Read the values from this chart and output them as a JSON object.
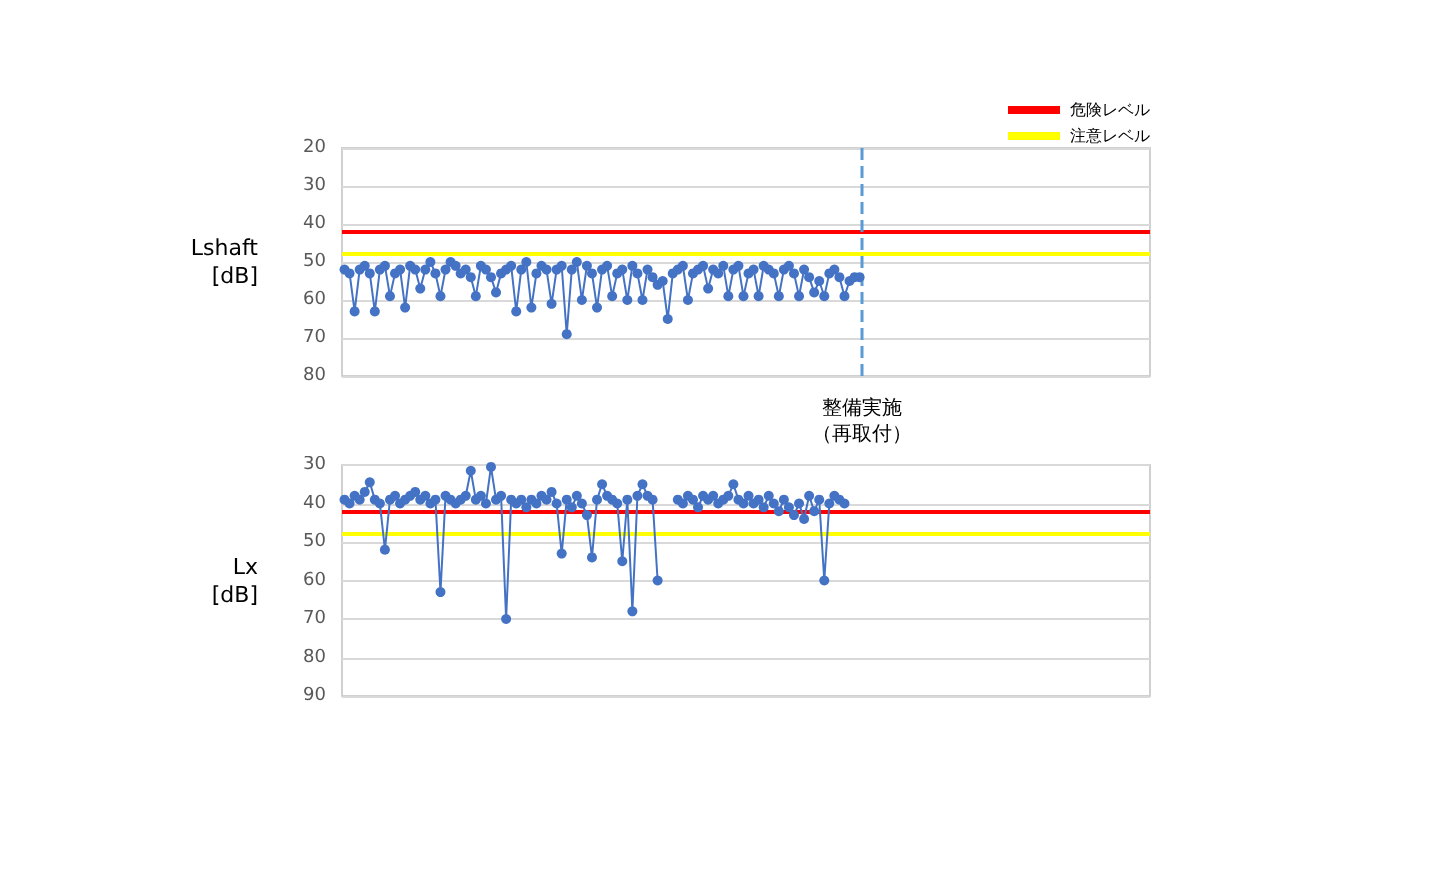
{
  "chart_data": [
    {
      "type": "line",
      "ylabel": "Lshaft\n[dB]",
      "categories": [
        null,
        null,
        null,
        null,
        null,
        null,
        null,
        null,
        null,
        null,
        null,
        null,
        null,
        null,
        null,
        null,
        null,
        null,
        null,
        null,
        null,
        null,
        null,
        null,
        null,
        null,
        null,
        null,
        null,
        null,
        null,
        null,
        null,
        null,
        null,
        null,
        null,
        null,
        null,
        null,
        null,
        null,
        null,
        null,
        null,
        null,
        null,
        null,
        null,
        null,
        null,
        null,
        null,
        null,
        null,
        null,
        null,
        null,
        null,
        null,
        null,
        null,
        null,
        null,
        null,
        null,
        null,
        null,
        null,
        null,
        null,
        null,
        null,
        null,
        null,
        null,
        null,
        null,
        null,
        null,
        null,
        null,
        null,
        null,
        null,
        null,
        null,
        null,
        null,
        null,
        null,
        null,
        null,
        null,
        null,
        null,
        null,
        null,
        null,
        null,
        null,
        null,
        null,
        null,
        null,
        null,
        null,
        null,
        null,
        null,
        null,
        null,
        null,
        null,
        null,
        null,
        null,
        null,
        null,
        null,
        null,
        null,
        null,
        null,
        null,
        null,
        null,
        null,
        null,
        null,
        null,
        null,
        null,
        null,
        null,
        null,
        null,
        null,
        null,
        null,
        null,
        null,
        null,
        null,
        null,
        null,
        null,
        null,
        null,
        null,
        null,
        null,
        null,
        null,
        null,
        null,
        null,
        null,
        null,
        null
      ],
      "series": [
        {
          "color": "#4472c4",
          "values": [
            52,
            53,
            63,
            52,
            51,
            53,
            63,
            52,
            51,
            59,
            53,
            52,
            62,
            51,
            52,
            57,
            52,
            50,
            53,
            59,
            52,
            50,
            51,
            53,
            52,
            54,
            59,
            51,
            52,
            54,
            58,
            53,
            52,
            51,
            63,
            52,
            50,
            62,
            53,
            51,
            52,
            61,
            52,
            51,
            69,
            52,
            50,
            60,
            51,
            53,
            62,
            52,
            51,
            59,
            53,
            52,
            60,
            51,
            53,
            60,
            52,
            54,
            56,
            55,
            65,
            53,
            52,
            51,
            60,
            53,
            52,
            51,
            57,
            52,
            53,
            51,
            59,
            52,
            51,
            59,
            53,
            52,
            59,
            51,
            52,
            53,
            59,
            52,
            51,
            53,
            59,
            52,
            54,
            58,
            55,
            59,
            53,
            52,
            54,
            59,
            55,
            54,
            54,
            null,
            null,
            null,
            null,
            null,
            null,
            null,
            null,
            null,
            null,
            null,
            null,
            null,
            null,
            null,
            null,
            null,
            null,
            null,
            null,
            null,
            null,
            null,
            null,
            null,
            null,
            null,
            null,
            null,
            null,
            null,
            null,
            null,
            null,
            null,
            null,
            null,
            null,
            null,
            null,
            null,
            null,
            null,
            null,
            null,
            null,
            null,
            null,
            null,
            null,
            null,
            null,
            null,
            null,
            null,
            null,
            null
          ]
        }
      ],
      "ylim": [
        80,
        20
      ],
      "yticks": [
        20,
        30,
        40,
        50,
        60,
        70,
        80
      ],
      "tick_labels": "y",
      "grid": "y",
      "marker": "circle",
      "legend": "top right",
      "ref_lines": [
        {
          "axis": "y",
          "value": 42,
          "label": "危険レベル",
          "color": "#ff0000"
        },
        {
          "axis": "y",
          "value": 48,
          "label": "注意レベル",
          "color": "#ffff00"
        }
      ],
      "annotations": [
        "整備実施（再取付）"
      ]
    },
    {
      "type": "line",
      "ylabel": "Lx\n[dB]",
      "categories": [
        null,
        null,
        null,
        null,
        null,
        null,
        null,
        null,
        null,
        null,
        null,
        null,
        null,
        null,
        null,
        null,
        null,
        null,
        null,
        null,
        null,
        null,
        null,
        null,
        null,
        null,
        null,
        null,
        null,
        null,
        null,
        null,
        null,
        null,
        null,
        null,
        null,
        null,
        null,
        null,
        null,
        null,
        null,
        null,
        null,
        null,
        null,
        null,
        null,
        null,
        null,
        null,
        null,
        null,
        null,
        null,
        null,
        null,
        null,
        null,
        null,
        null,
        null,
        null,
        null,
        null,
        null,
        null,
        null,
        null,
        null,
        null,
        null,
        null,
        null,
        null,
        null,
        null,
        null,
        null,
        null,
        null,
        null,
        null,
        null,
        null,
        null,
        null,
        null,
        null,
        null,
        null,
        null,
        null,
        null,
        null,
        null,
        null,
        null,
        null,
        null,
        null,
        null,
        null,
        null,
        null,
        null,
        null,
        null,
        null,
        null,
        null,
        null,
        null,
        null,
        null,
        null,
        null,
        null,
        null,
        null,
        null,
        null,
        null,
        null,
        null,
        null,
        null,
        null,
        null,
        null,
        null,
        null,
        null,
        null,
        null,
        null,
        null,
        null,
        null,
        null,
        null,
        null,
        null,
        null,
        null,
        null,
        null,
        null,
        null,
        null,
        null,
        null,
        null,
        null,
        null,
        null,
        null,
        null,
        null
      ],
      "series": [
        {
          "color": "#4472c4",
          "values": [
            39,
            40,
            38,
            39,
            37,
            34.5,
            39,
            40,
            52,
            39,
            38,
            40,
            39,
            38,
            37,
            39,
            38,
            40,
            39,
            63,
            38,
            39,
            40,
            39,
            38,
            31.5,
            39,
            38,
            40,
            30.5,
            39,
            38,
            70,
            39,
            40,
            39,
            41,
            39,
            40,
            38,
            39,
            37,
            40,
            53,
            39,
            41,
            38,
            40,
            43,
            54,
            39,
            35,
            38,
            39,
            40,
            55,
            39,
            68,
            38,
            35,
            38,
            39,
            60,
            null,
            null,
            null,
            39,
            40,
            38,
            39,
            41,
            38,
            39,
            38,
            40,
            39,
            38,
            35,
            39,
            40,
            38,
            40,
            39,
            41,
            38,
            40,
            42,
            39,
            41,
            43,
            40,
            44,
            38,
            42,
            39,
            60,
            40,
            38,
            39,
            40,
            null,
            null,
            null,
            null,
            null,
            null,
            null,
            null,
            null,
            null,
            null,
            null,
            null,
            null,
            null,
            null,
            null,
            null,
            null,
            null,
            null,
            null,
            null,
            null,
            null,
            null,
            null,
            null,
            null,
            null,
            null,
            null,
            null,
            null,
            null,
            null,
            null,
            null,
            null,
            null,
            null,
            null,
            null,
            null,
            null,
            null,
            null,
            null,
            null,
            null,
            null,
            null,
            null,
            null,
            null,
            null,
            null,
            null,
            null,
            null
          ]
        }
      ],
      "ylim": [
        90,
        30
      ],
      "yticks": [
        30,
        40,
        50,
        60,
        70,
        80,
        90
      ],
      "tick_labels": "y",
      "grid": "y",
      "marker": "circle",
      "ref_lines": [
        {
          "axis": "y",
          "value": 42,
          "color": "#ff0000"
        },
        {
          "axis": "y",
          "value": 48,
          "color": "#ffff00"
        }
      ]
    }
  ]
}
